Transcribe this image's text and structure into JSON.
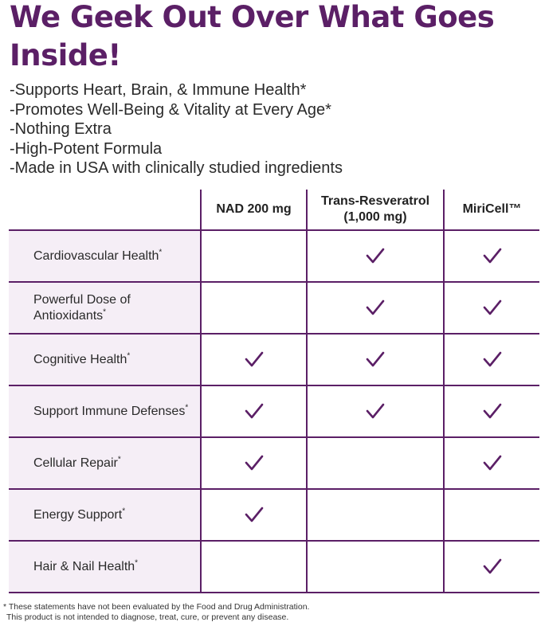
{
  "headline": "We Geek Out Over What Goes Inside!",
  "bullets": [
    "-Supports Heart, Brain, & Immune Health*",
    "-Promotes Well-Being & Vitality at Every Age*",
    "-Nothing Extra",
    "-High-Potent Formula",
    "-Made in USA with clinically studied ingredients"
  ],
  "table": {
    "columns": [
      "NAD 200 mg",
      "Trans-Resveratrol (1,000 mg)",
      "MiriCell™"
    ],
    "check_icon": "check-icon",
    "accent_color": "#5b1f66",
    "row_bg_color": "#f5eef6",
    "rows": [
      {
        "label": "Cardiovascular Health",
        "mark": "*",
        "checks": [
          false,
          true,
          true
        ]
      },
      {
        "label": "Powerful Dose of Antioxidants",
        "mark": "*",
        "checks": [
          false,
          true,
          true
        ]
      },
      {
        "label": "Cognitive Health",
        "mark": "*",
        "checks": [
          true,
          true,
          true
        ]
      },
      {
        "label": "Support Immune Defenses",
        "mark": "*",
        "checks": [
          true,
          true,
          true
        ]
      },
      {
        "label": "Cellular Repair",
        "mark": "*",
        "checks": [
          true,
          false,
          true
        ]
      },
      {
        "label": "Energy Support",
        "mark": "*",
        "checks": [
          true,
          false,
          false
        ]
      },
      {
        "label": "Hair & Nail Health",
        "mark": "*",
        "checks": [
          false,
          false,
          true
        ]
      }
    ]
  },
  "footnote": {
    "line1": "* These statements have not been evaluated by the Food and Drug Administration.",
    "line2": "This product is not intended to diagnose, treat, cure, or prevent any disease."
  }
}
